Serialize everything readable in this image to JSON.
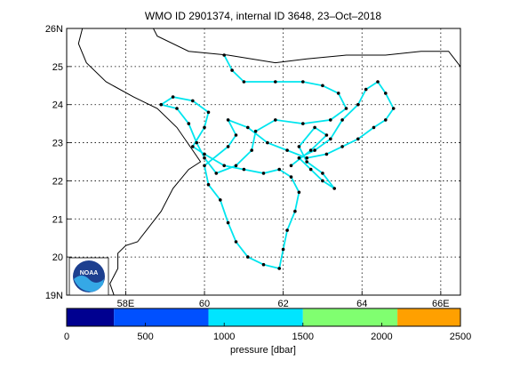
{
  "title": "WMO ID 2901374, internal ID 3648, 23–Oct–2018",
  "logo": {
    "text": "NOAA",
    "icon": "noaa-logo"
  },
  "map": {
    "lon_range": [
      56.5,
      66.5
    ],
    "lat_range": [
      19,
      26
    ],
    "lon_ticks": [
      {
        "value": 58,
        "label": "58E"
      },
      {
        "value": 60,
        "label": "60"
      },
      {
        "value": 62,
        "label": "62"
      },
      {
        "value": 64,
        "label": "64"
      },
      {
        "value": 66,
        "label": "66E"
      }
    ],
    "lat_ticks": [
      {
        "value": 19,
        "label": "19N"
      },
      {
        "value": 20,
        "label": "20"
      },
      {
        "value": 21,
        "label": "21"
      },
      {
        "value": 22,
        "label": "22"
      },
      {
        "value": 23,
        "label": "23"
      },
      {
        "value": 24,
        "label": "24"
      },
      {
        "value": 25,
        "label": "25"
      },
      {
        "value": 26,
        "label": "26N"
      }
    ],
    "grid": true,
    "coastline_color": "#000000",
    "track_color": "#00e5ee",
    "point_color": "#000000"
  },
  "colorbar": {
    "label": "pressure [dbar]",
    "ticks": [
      "0",
      "500",
      "1000",
      "1500",
      "2000",
      "2500"
    ],
    "bins": [
      {
        "from": 0,
        "to": 300,
        "color": "#000090"
      },
      {
        "from": 300,
        "to": 900,
        "color": "#0050ff"
      },
      {
        "from": 900,
        "to": 1500,
        "color": "#00e5ff"
      },
      {
        "from": 1500,
        "to": 2100,
        "color": "#80ff70"
      },
      {
        "from": 2100,
        "to": 2500,
        "color": "#ffa000"
      }
    ]
  },
  "chart_data": {
    "type": "scatter",
    "x_axis": "longitude",
    "y_axis": "latitude",
    "coastline": [
      [
        56.9,
        26.0
      ],
      [
        56.8,
        25.6
      ],
      [
        57.0,
        25.1
      ],
      [
        57.5,
        24.6
      ],
      [
        58.2,
        24.2
      ],
      [
        58.8,
        23.9
      ],
      [
        59.3,
        23.4
      ],
      [
        59.7,
        22.8
      ],
      [
        59.9,
        22.5
      ],
      [
        59.6,
        22.3
      ],
      [
        59.2,
        21.8
      ],
      [
        58.9,
        21.2
      ],
      [
        58.6,
        20.8
      ],
      [
        58.3,
        20.4
      ],
      [
        58.0,
        20.3
      ],
      [
        57.8,
        20.1
      ],
      [
        57.8,
        19.7
      ],
      [
        57.6,
        19.3
      ],
      [
        57.7,
        19.0
      ]
    ],
    "coastline_north": [
      [
        58.7,
        26.0
      ],
      [
        58.8,
        25.8
      ],
      [
        59.6,
        25.4
      ],
      [
        60.6,
        25.3
      ],
      [
        61.8,
        25.1
      ],
      [
        62.6,
        25.2
      ],
      [
        63.6,
        25.3
      ],
      [
        64.6,
        25.3
      ],
      [
        65.5,
        25.4
      ],
      [
        66.2,
        25.4
      ],
      [
        66.5,
        25.0
      ]
    ],
    "track": [
      [
        60.5,
        25.3
      ],
      [
        60.7,
        24.9
      ],
      [
        61.0,
        24.6
      ],
      [
        61.8,
        24.6
      ],
      [
        62.5,
        24.6
      ],
      [
        63.0,
        24.5
      ],
      [
        63.4,
        24.3
      ],
      [
        63.6,
        23.9
      ],
      [
        63.2,
        23.6
      ],
      [
        62.5,
        23.5
      ],
      [
        61.8,
        23.6
      ],
      [
        61.3,
        23.3
      ],
      [
        61.2,
        22.8
      ],
      [
        60.8,
        22.4
      ],
      [
        60.3,
        22.2
      ],
      [
        60.0,
        22.6
      ],
      [
        59.8,
        23.0
      ],
      [
        59.6,
        23.5
      ],
      [
        59.3,
        23.9
      ],
      [
        58.9,
        24.0
      ],
      [
        59.2,
        24.2
      ],
      [
        59.7,
        24.1
      ],
      [
        60.1,
        23.8
      ],
      [
        60.0,
        23.4
      ],
      [
        59.7,
        22.9
      ],
      [
        60.0,
        22.7
      ],
      [
        60.5,
        22.4
      ],
      [
        61.0,
        22.3
      ],
      [
        61.5,
        22.2
      ],
      [
        61.9,
        22.3
      ],
      [
        62.2,
        22.1
      ],
      [
        62.4,
        21.7
      ],
      [
        62.3,
        21.2
      ],
      [
        62.1,
        20.7
      ],
      [
        62.0,
        20.2
      ],
      [
        61.9,
        19.7
      ],
      [
        61.5,
        19.8
      ],
      [
        61.1,
        20.0
      ],
      [
        60.8,
        20.4
      ],
      [
        60.6,
        20.9
      ],
      [
        60.4,
        21.5
      ],
      [
        60.1,
        21.9
      ],
      [
        60.0,
        22.4
      ],
      [
        60.6,
        22.9
      ],
      [
        60.8,
        23.2
      ],
      [
        60.6,
        23.6
      ],
      [
        61.1,
        23.4
      ],
      [
        61.6,
        23.0
      ],
      [
        62.1,
        22.8
      ],
      [
        62.6,
        22.6
      ],
      [
        63.1,
        22.7
      ],
      [
        63.5,
        22.9
      ],
      [
        63.9,
        23.1
      ],
      [
        64.3,
        23.4
      ],
      [
        64.6,
        23.6
      ],
      [
        64.8,
        23.9
      ],
      [
        64.6,
        24.3
      ],
      [
        64.4,
        24.6
      ],
      [
        64.1,
        24.4
      ],
      [
        63.9,
        24.0
      ],
      [
        63.5,
        23.6
      ],
      [
        63.2,
        23.1
      ],
      [
        62.8,
        22.8
      ],
      [
        62.4,
        22.6
      ],
      [
        62.7,
        22.3
      ],
      [
        63.0,
        22.0
      ],
      [
        63.3,
        21.8
      ],
      [
        63.0,
        22.2
      ],
      [
        62.6,
        22.5
      ],
      [
        62.4,
        22.9
      ],
      [
        62.8,
        23.4
      ],
      [
        63.1,
        23.2
      ],
      [
        62.7,
        22.8
      ],
      [
        62.2,
        22.4
      ]
    ]
  }
}
